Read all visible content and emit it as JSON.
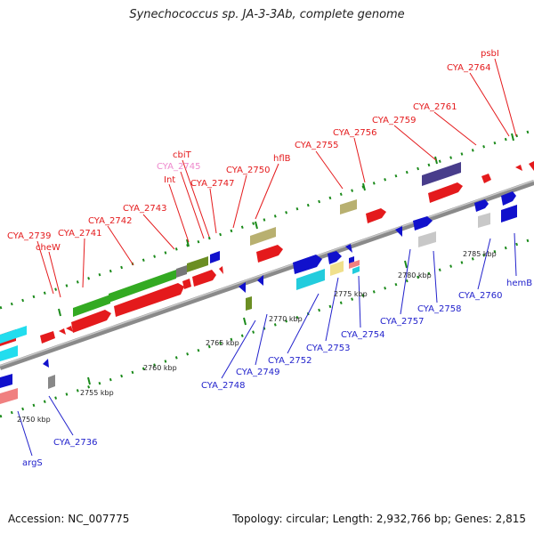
{
  "title": "Synechococcus sp. JA-3-3Ab, complete genome",
  "footer": {
    "accession": "Accession: NC_007775",
    "summary": "Topology: circular; Length: 2,932,766 bp; Genes: 2,815"
  },
  "colors": {
    "label_forward": "#e41a1c",
    "label_reverse": "#2222cc",
    "label_pink": "#ee88cc",
    "backbone": "#8a8a8a",
    "tick_green": "#1a8a1a"
  },
  "scale": {
    "ticks": [
      {
        "label": "2750 kbp"
      },
      {
        "label": "2755 kbp"
      },
      {
        "label": "2760 kbp"
      },
      {
        "label": "2765 kbp"
      },
      {
        "label": "2770 kbp"
      },
      {
        "label": "2775 kbp"
      },
      {
        "label": "2780 kbp"
      },
      {
        "label": "2785 kbp"
      }
    ]
  },
  "forward_labels": [
    {
      "text": "CYA_2739"
    },
    {
      "text": "cheW"
    },
    {
      "text": "CYA_2741"
    },
    {
      "text": "CYA_2742"
    },
    {
      "text": "CYA_2743"
    },
    {
      "text": "Int"
    },
    {
      "text": "CYA_2745"
    },
    {
      "text": "cbiT"
    },
    {
      "text": "CYA_2747"
    },
    {
      "text": "CYA_2750"
    },
    {
      "text": "hflB"
    },
    {
      "text": "CYA_2755"
    },
    {
      "text": "CYA_2756"
    },
    {
      "text": "CYA_2759"
    },
    {
      "text": "CYA_2761"
    },
    {
      "text": "CYA_2764"
    },
    {
      "text": "psbI"
    }
  ],
  "reverse_labels": [
    {
      "text": "argS"
    },
    {
      "text": "CYA_2736"
    },
    {
      "text": "CYA_2748"
    },
    {
      "text": "CYA_2749"
    },
    {
      "text": "CYA_2752"
    },
    {
      "text": "CYA_2753"
    },
    {
      "text": "CYA_2754"
    },
    {
      "text": "CYA_2757"
    },
    {
      "text": "CYA_2758"
    },
    {
      "text": "CYA_2760"
    },
    {
      "text": "hemB"
    }
  ]
}
